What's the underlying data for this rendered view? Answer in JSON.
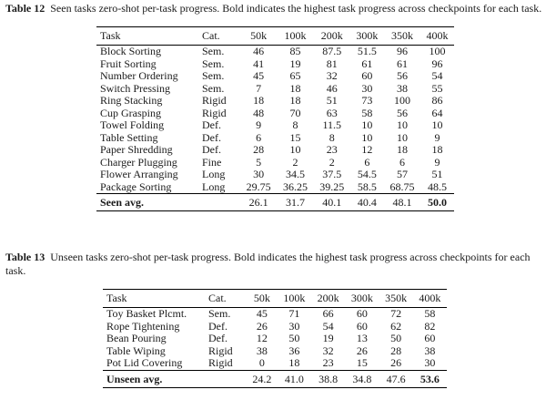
{
  "table12": {
    "label": "Table 12",
    "caption": "Seen tasks zero-shot per-task progress. Bold indicates the highest task progress across checkpoints for each task.",
    "headers": [
      "Task",
      "Cat.",
      "50k",
      "100k",
      "200k",
      "300k",
      "350k",
      "400k"
    ],
    "rows": [
      {
        "task": "Block Sorting",
        "cat": "Sem.",
        "vals": [
          "46",
          "85",
          "87.5",
          "51.5",
          "96",
          "100"
        ],
        "best": [
          5
        ]
      },
      {
        "task": "Fruit Sorting",
        "cat": "Sem.",
        "vals": [
          "41",
          "19",
          "81",
          "61",
          "61",
          "96"
        ],
        "best": [
          5
        ]
      },
      {
        "task": "Number Ordering",
        "cat": "Sem.",
        "vals": [
          "45",
          "65",
          "32",
          "60",
          "56",
          "54"
        ],
        "best": [
          1
        ]
      },
      {
        "task": "Switch Pressing",
        "cat": "Sem.",
        "vals": [
          "7",
          "18",
          "46",
          "30",
          "38",
          "55"
        ],
        "best": [
          5
        ]
      },
      {
        "task": "Ring Stacking",
        "cat": "Rigid",
        "vals": [
          "18",
          "18",
          "51",
          "73",
          "100",
          "86"
        ],
        "best": [
          4
        ]
      },
      {
        "task": "Cup Grasping",
        "cat": "Rigid",
        "vals": [
          "48",
          "70",
          "63",
          "58",
          "56",
          "64"
        ],
        "best": [
          1
        ]
      },
      {
        "task": "Towel Folding",
        "cat": "Def.",
        "vals": [
          "9",
          "8",
          "11.5",
          "10",
          "10",
          "10"
        ],
        "best": [
          2
        ]
      },
      {
        "task": "Table Setting",
        "cat": "Def.",
        "vals": [
          "6",
          "15",
          "8",
          "10",
          "10",
          "9"
        ],
        "best": [
          1
        ]
      },
      {
        "task": "Paper Shredding",
        "cat": "Def.",
        "vals": [
          "28",
          "10",
          "23",
          "12",
          "18",
          "18"
        ],
        "best": [
          0
        ]
      },
      {
        "task": "Charger Plugging",
        "cat": "Fine",
        "vals": [
          "5",
          "2",
          "2",
          "6",
          "6",
          "9"
        ],
        "best": [
          5
        ]
      },
      {
        "task": "Flower Arranging",
        "cat": "Long",
        "vals": [
          "30",
          "34.5",
          "37.5",
          "54.5",
          "57",
          "51"
        ],
        "best": [
          4
        ]
      },
      {
        "task": "Package Sorting",
        "cat": "Long",
        "vals": [
          "29.75",
          "36.25",
          "39.25",
          "58.5",
          "68.75",
          "48.5"
        ],
        "best": [
          4
        ]
      }
    ],
    "avg": {
      "label": "Seen avg.",
      "vals": [
        "26.1",
        "31.7",
        "40.1",
        "40.4",
        "48.1",
        "50.0"
      ],
      "best": [
        5
      ]
    }
  },
  "table13": {
    "label": "Table 13",
    "caption": "Unseen tasks zero-shot per-task progress. Bold indicates the highest task progress across checkpoints for each task.",
    "headers": [
      "Task",
      "Cat.",
      "50k",
      "100k",
      "200k",
      "300k",
      "350k",
      "400k"
    ],
    "rows": [
      {
        "task": "Toy Basket Plcmt.",
        "cat": "Sem.",
        "vals": [
          "45",
          "71",
          "66",
          "60",
          "72",
          "58"
        ],
        "best": [
          4
        ]
      },
      {
        "task": "Rope Tightening",
        "cat": "Def.",
        "vals": [
          "26",
          "30",
          "54",
          "60",
          "62",
          "82"
        ],
        "best": [
          5
        ]
      },
      {
        "task": "Bean Pouring",
        "cat": "Def.",
        "vals": [
          "12",
          "50",
          "19",
          "13",
          "50",
          "60"
        ],
        "best": [
          5
        ]
      },
      {
        "task": "Table Wiping",
        "cat": "Rigid",
        "vals": [
          "38",
          "36",
          "32",
          "26",
          "28",
          "38"
        ],
        "best": [
          0
        ]
      },
      {
        "task": "Pot Lid Covering",
        "cat": "Rigid",
        "vals": [
          "0",
          "18",
          "23",
          "15",
          "26",
          "30"
        ],
        "best": [
          5
        ]
      }
    ],
    "avg": {
      "label": "Unseen avg.",
      "vals": [
        "24.2",
        "41.0",
        "38.8",
        "34.8",
        "47.6",
        "53.6"
      ],
      "best": [
        5
      ]
    }
  }
}
